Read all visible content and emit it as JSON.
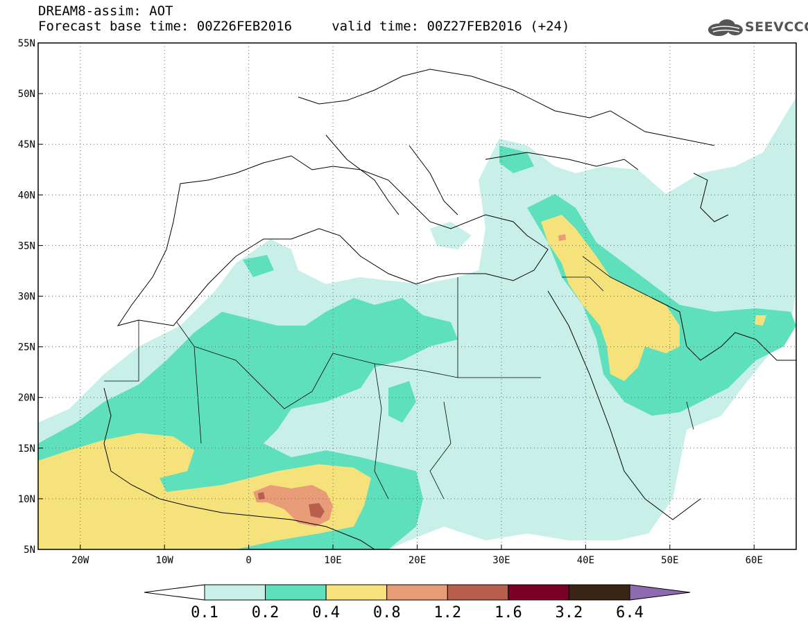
{
  "header": {
    "line1": "DREAM8-assim: AOT",
    "line2": "Forecast base time: 00Z26FEB2016     valid time: 00Z27FEB2016 (+24)",
    "logo_text": "SEEVCCC",
    "logo_icon": "cloud-icon"
  },
  "map": {
    "variable": "AOT",
    "lon_range": [
      -25,
      65
    ],
    "lat_range": [
      5,
      55
    ],
    "lon_ticks": [
      {
        "value": -20,
        "label": "20W"
      },
      {
        "value": -10,
        "label": "10W"
      },
      {
        "value": 0,
        "label": "0"
      },
      {
        "value": 10,
        "label": "10E"
      },
      {
        "value": 20,
        "label": "20E"
      },
      {
        "value": 30,
        "label": "30E"
      },
      {
        "value": 40,
        "label": "40E"
      },
      {
        "value": 50,
        "label": "50E"
      },
      {
        "value": 60,
        "label": "60E"
      }
    ],
    "lat_ticks": [
      {
        "value": 55,
        "label": "55N"
      },
      {
        "value": 50,
        "label": "50N"
      },
      {
        "value": 45,
        "label": "45N"
      },
      {
        "value": 40,
        "label": "40N"
      },
      {
        "value": 35,
        "label": "35N"
      },
      {
        "value": 30,
        "label": "30N"
      },
      {
        "value": 25,
        "label": "25N"
      },
      {
        "value": 20,
        "label": "20N"
      },
      {
        "value": 15,
        "label": "15N"
      },
      {
        "value": 10,
        "label": "10N"
      },
      {
        "value": 5,
        "label": "5N"
      }
    ],
    "grid": true
  },
  "colorbar": {
    "labels": [
      "0.1",
      "0.2",
      "0.4",
      "0.8",
      "1.2",
      "1.6",
      "3.2",
      "6.4"
    ],
    "colors": [
      "#c8f0e8",
      "#5ee0bc",
      "#f5e27a",
      "#e89c78",
      "#b85f4e",
      "#7a0028",
      "#3a2414",
      "#8e6bb0"
    ],
    "extend_low_color": "#ffffff"
  }
}
